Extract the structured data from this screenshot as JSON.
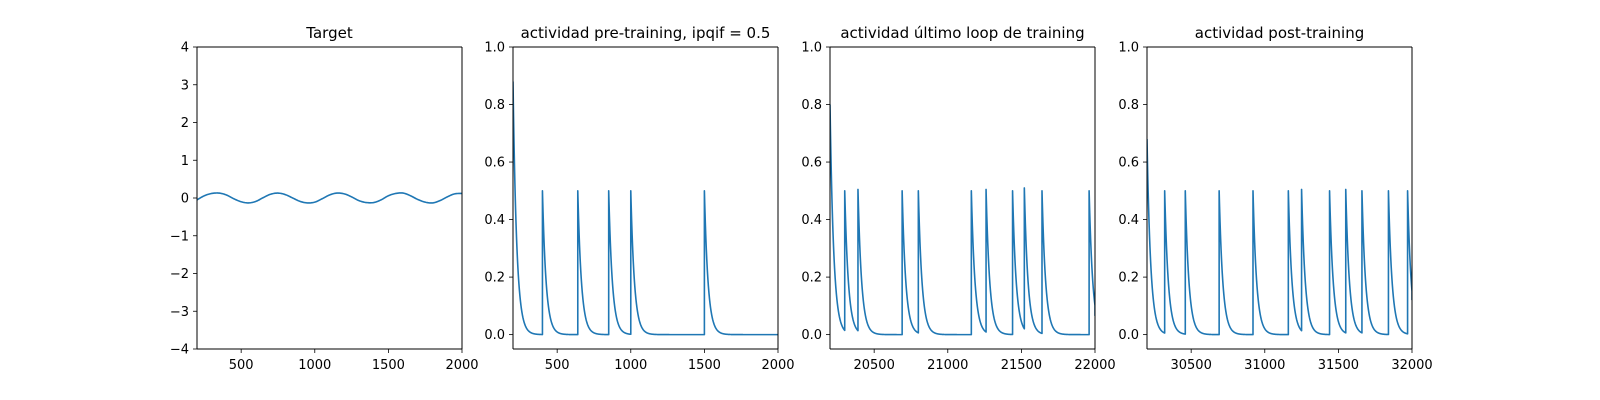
{
  "chart_data": [
    {
      "type": "line",
      "title": "Target",
      "xlabel": "",
      "ylabel": "",
      "xlim": [
        200,
        2000
      ],
      "ylim": [
        -4,
        4
      ],
      "xticks": [
        500,
        1000,
        1500,
        2000
      ],
      "yticks": [
        -4,
        -3,
        -2,
        -1,
        0,
        1,
        2,
        3,
        4
      ],
      "xtick_labels": [
        "500",
        "1000",
        "1500",
        "2000"
      ],
      "ytick_labels": [
        "−4",
        "−3",
        "−2",
        "−1",
        "0",
        "1",
        "2",
        "3",
        "4"
      ],
      "color": "#1f77b4",
      "series": [
        {
          "x": [
            200,
            250,
            300,
            350,
            400,
            450,
            500,
            550,
            600,
            650,
            700,
            750,
            800,
            850,
            900,
            950,
            1000,
            1050,
            1100,
            1150,
            1200,
            1250,
            1300,
            1350,
            1400,
            1450,
            1500,
            1550,
            1600,
            1650,
            1700,
            1750,
            1800,
            1850,
            1900,
            1950,
            2000
          ],
          "y": [
            -0.05,
            0.06,
            0.12,
            0.13,
            0.08,
            -0.02,
            -0.1,
            -0.13,
            -0.09,
            0.01,
            0.1,
            0.13,
            0.09,
            0.0,
            -0.09,
            -0.13,
            -0.11,
            -0.02,
            0.08,
            0.13,
            0.11,
            0.03,
            -0.07,
            -0.12,
            -0.12,
            -0.05,
            0.06,
            0.12,
            0.13,
            0.06,
            -0.04,
            -0.11,
            -0.13,
            -0.07,
            0.03,
            0.11,
            0.12
          ]
        }
      ]
    },
    {
      "type": "line",
      "title": "actividad pre-training, ipqif = 0.5",
      "xlabel": "",
      "ylabel": "",
      "xlim": [
        200,
        2000
      ],
      "ylim": [
        -0.05,
        1.0
      ],
      "xticks": [
        500,
        1000,
        1500,
        2000
      ],
      "yticks": [
        0.0,
        0.2,
        0.4,
        0.6,
        0.8,
        1.0
      ],
      "xtick_labels": [
        "500",
        "1000",
        "1500",
        "2000"
      ],
      "ytick_labels": [
        "0.0",
        "0.2",
        "0.4",
        "0.6",
        "0.8",
        "1.0"
      ],
      "color": "#1f77b4",
      "spikes": {
        "start_peak": 0.88,
        "start_rise_to": 210,
        "times": [
          400,
          640,
          850,
          1000,
          1500
        ],
        "peaks": [
          0.5,
          0.5,
          0.5,
          0.5,
          0.5
        ],
        "decay": 25,
        "baseline": 0.0
      }
    },
    {
      "type": "line",
      "title": "actividad último loop de training",
      "xlabel": "",
      "ylabel": "",
      "xlim": [
        20200,
        22000
      ],
      "ylim": [
        -0.05,
        1.0
      ],
      "xticks": [
        20500,
        21000,
        21500,
        22000
      ],
      "yticks": [
        0.0,
        0.2,
        0.4,
        0.6,
        0.8,
        1.0
      ],
      "xtick_labels": [
        "20500",
        "21000",
        "21500",
        "22000"
      ],
      "ytick_labels": [
        "0.0",
        "0.2",
        "0.4",
        "0.6",
        "0.8",
        "1.0"
      ],
      "color": "#1f77b4",
      "spikes": {
        "start_peak": 0.8,
        "start_rise_to": 20200,
        "times": [
          20300,
          20390,
          20690,
          20800,
          21160,
          21260,
          21440,
          21520,
          21640,
          21960
        ],
        "peaks": [
          0.5,
          0.505,
          0.5,
          0.5,
          0.5,
          0.505,
          0.5,
          0.51,
          0.5,
          0.5
        ],
        "decay": 25,
        "baseline": 0.0,
        "end_value": 0.065
      }
    },
    {
      "type": "line",
      "title": "actividad post-training",
      "xlabel": "",
      "ylabel": "",
      "xlim": [
        30200,
        32000
      ],
      "ylim": [
        -0.05,
        1.0
      ],
      "xticks": [
        30500,
        31000,
        31500,
        32000
      ],
      "yticks": [
        0.0,
        0.2,
        0.4,
        0.6,
        0.8,
        1.0
      ],
      "xtick_labels": [
        "30500",
        "31000",
        "31500",
        "32000"
      ],
      "ytick_labels": [
        "0.0",
        "0.2",
        "0.4",
        "0.6",
        "0.8",
        "1.0"
      ],
      "color": "#1f77b4",
      "spikes": {
        "start_peak": 0.68,
        "start_rise_to": 30200,
        "times": [
          30320,
          30460,
          30690,
          30920,
          31160,
          31250,
          31440,
          31550,
          31660,
          31840,
          31970
        ],
        "peaks": [
          0.5,
          0.5,
          0.5,
          0.5,
          0.5,
          0.505,
          0.5,
          0.505,
          0.5,
          0.5,
          0.5
        ],
        "decay": 25,
        "baseline": 0.0,
        "end_value": 0.12
      }
    }
  ]
}
